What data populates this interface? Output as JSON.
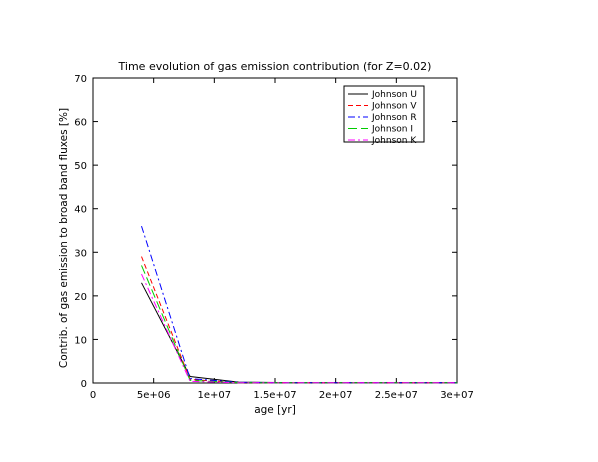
{
  "chart_data": {
    "type": "line",
    "title": "Time evolution of gas emission contribution  (for Z=0.02)",
    "xlabel": "age [yr]",
    "ylabel": "Contrib. of gas emission to broad band fluxes [%]",
    "xlim": [
      0,
      30000000
    ],
    "ylim": [
      0,
      70
    ],
    "x_ticks": [
      {
        "value": 0,
        "label": "0"
      },
      {
        "value": 5000000,
        "label": "5e+06"
      },
      {
        "value": 10000000,
        "label": "1e+07"
      },
      {
        "value": 15000000,
        "label": "1.5e+07"
      },
      {
        "value": 20000000,
        "label": "2e+07"
      },
      {
        "value": 25000000,
        "label": "2.5e+07"
      },
      {
        "value": 30000000,
        "label": "3e+07"
      }
    ],
    "y_ticks": [
      {
        "value": 0,
        "label": "0"
      },
      {
        "value": 10,
        "label": "10"
      },
      {
        "value": 20,
        "label": "20"
      },
      {
        "value": 30,
        "label": "30"
      },
      {
        "value": 40,
        "label": "40"
      },
      {
        "value": 50,
        "label": "50"
      },
      {
        "value": 60,
        "label": "60"
      },
      {
        "value": 70,
        "label": "70"
      }
    ],
    "grid": false,
    "legend_position": "top-right",
    "series": [
      {
        "name": "Johnson U",
        "color": "#000000",
        "dash": "solid",
        "x": [
          4000000,
          8000000,
          12000000,
          16000000,
          20000000,
          25000000,
          30000000
        ],
        "y": [
          23,
          1.5,
          0.2,
          0.1,
          0.1,
          0.1,
          0.1
        ]
      },
      {
        "name": "Johnson V",
        "color": "#ff0000",
        "dash": "dashed",
        "x": [
          4000000,
          8000000,
          12000000,
          16000000,
          20000000,
          25000000,
          30000000
        ],
        "y": [
          29,
          0.8,
          0.1,
          0.05,
          0.05,
          0.05,
          0.05
        ]
      },
      {
        "name": "Johnson R",
        "color": "#0000ff",
        "dash": "dashdot",
        "x": [
          4000000,
          8000000,
          12000000,
          16000000,
          20000000,
          25000000,
          30000000
        ],
        "y": [
          36,
          1.0,
          0.15,
          0.05,
          0.05,
          0.05,
          0.05
        ]
      },
      {
        "name": "Johnson I",
        "color": "#00cc00",
        "dash": "longdash",
        "x": [
          4000000,
          8000000,
          12000000,
          16000000,
          20000000,
          25000000,
          30000000
        ],
        "y": [
          27,
          0.6,
          0.1,
          0.05,
          0.05,
          0.05,
          0.05
        ]
      },
      {
        "name": "Johnson K",
        "color": "#ff00ff",
        "dash": "dashdot",
        "x": [
          4000000,
          8000000,
          12000000,
          16000000,
          20000000,
          25000000,
          30000000
        ],
        "y": [
          25,
          0.4,
          0.05,
          0.05,
          0.05,
          0.05,
          0.05
        ]
      }
    ]
  }
}
